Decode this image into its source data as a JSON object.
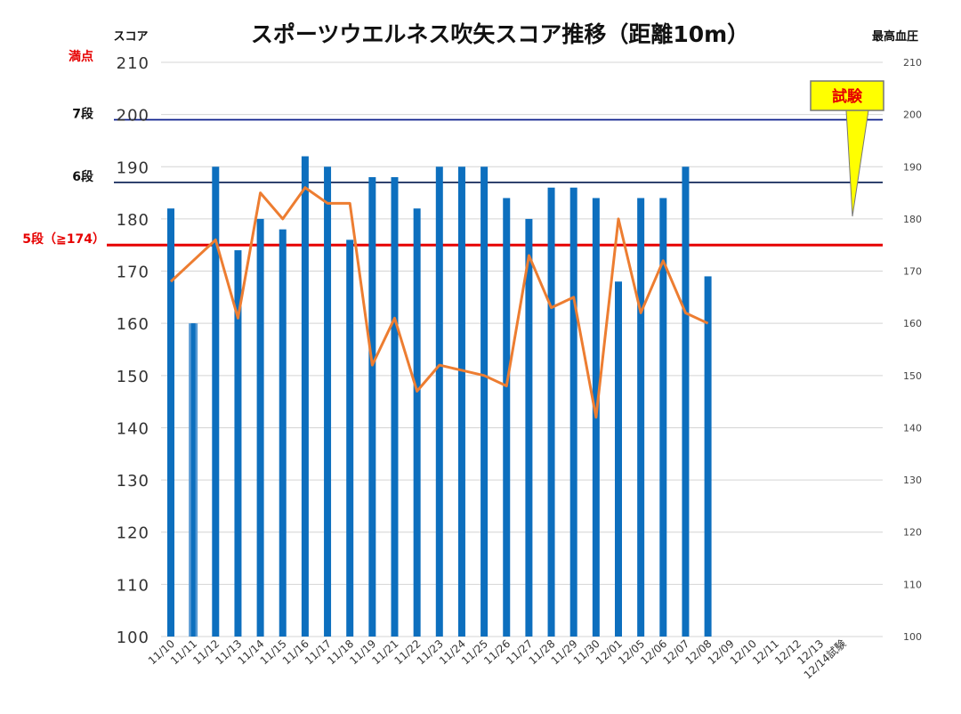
{
  "chart_data": {
    "type": "bar",
    "title": "スポーツウエルネス吹矢スコア推移（距離10m）",
    "left_axis_label": "スコア",
    "right_axis_label": "最高血圧",
    "categories": [
      "11/10",
      "11/11",
      "11/12",
      "11/13",
      "11/14",
      "11/15",
      "11/16",
      "11/17",
      "11/18",
      "11/19",
      "11/21",
      "11/22",
      "11/23",
      "11/24",
      "11/25",
      "11/26",
      "11/27",
      "11/28",
      "11/29",
      "11/30",
      "12/01",
      "12/05",
      "12/06",
      "12/07",
      "12/08",
      "12/09",
      "12/10",
      "12/11",
      "12/12",
      "12/13",
      "12/14試験"
    ],
    "series": [
      {
        "name": "スコア",
        "type": "bar",
        "axis": "left",
        "color": "#0d6fbe",
        "values": [
          182,
          160,
          190,
          174,
          180,
          178,
          192,
          190,
          176,
          188,
          188,
          182,
          190,
          190,
          190,
          184,
          180,
          186,
          186,
          184,
          168,
          184,
          184,
          190,
          169,
          null,
          null,
          null,
          null,
          null,
          null
        ]
      },
      {
        "name": "最高血圧",
        "type": "line",
        "axis": "right",
        "color": "#ed7d31",
        "values": [
          168,
          172,
          176,
          161,
          185,
          180,
          186,
          183,
          183,
          152,
          161,
          147,
          152,
          151,
          150,
          148,
          173,
          163,
          165,
          142,
          180,
          162,
          172,
          162,
          160,
          null,
          null,
          null,
          null,
          null,
          null
        ]
      }
    ],
    "y_left": {
      "ylim": [
        100,
        210
      ],
      "ticks": [
        "100",
        "110",
        "120",
        "130",
        "140",
        "150",
        "160",
        "170",
        "180",
        "190",
        "200",
        "210"
      ]
    },
    "y_right": {
      "ylim": [
        100,
        210
      ],
      "ticks": [
        "100",
        "110",
        "120",
        "130",
        "140",
        "150",
        "160",
        "170",
        "180",
        "190",
        "200",
        "210"
      ]
    },
    "reference_lines": [
      {
        "label": "満点",
        "value": 210,
        "color": "#e60000",
        "drawn": false
      },
      {
        "label": "7段",
        "value": 200,
        "color": "#111111",
        "line_color": "#0d1f8c",
        "drawn": true,
        "line_value": 199
      },
      {
        "label": "6段",
        "value": 190,
        "color": "#111111",
        "line_color": "#14295a",
        "drawn": true,
        "line_value": 187
      },
      {
        "label": "5段（≧174）",
        "value": 175,
        "color": "#e60000",
        "line_color": "#e60000",
        "drawn": true,
        "line_value": 175
      }
    ],
    "callout": {
      "text": "試験",
      "fill": "#ffff00",
      "text_color": "#e60000"
    },
    "grid": true,
    "legend": "none"
  }
}
